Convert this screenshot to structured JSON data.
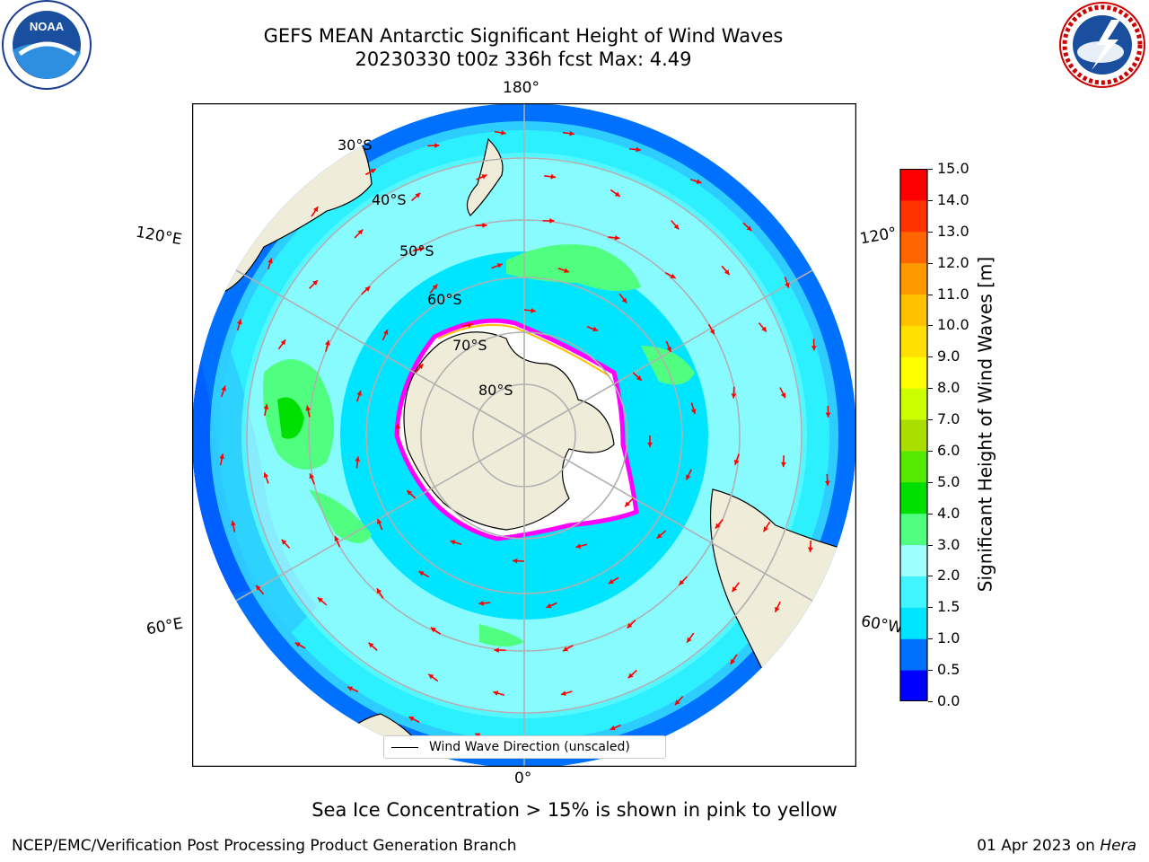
{
  "title_line1": "GEFS MEAN Antarctic Significant Height of Wind Waves",
  "title_line2": "20230330 t00z 336h fcst   Max: 4.49",
  "map": {
    "projection": "south polar stereographic",
    "lon_labels": [
      "180°",
      "120°E",
      "120°",
      "60°E",
      "60°W",
      "0°"
    ],
    "lat_labels": [
      "30°S",
      "40°S",
      "50°S",
      "60°S",
      "70°S",
      "80°S"
    ],
    "legend_label": "Wind Wave Direction (unscaled)",
    "colors": {
      "land": "#efedd9",
      "ice_edge": "#ff00ff",
      "arrow": "#ff0000",
      "grid": "#b0b0b0"
    }
  },
  "colorbar": {
    "title": "Significant Height of Wind Waves [m]",
    "ticks": [
      "0.0",
      "0.5",
      "1.0",
      "1.5",
      "2.0",
      "3.0",
      "4.0",
      "5.0",
      "6.0",
      "7.0",
      "8.0",
      "9.0",
      "10.0",
      "11.0",
      "12.0",
      "13.0",
      "14.0",
      "15.0"
    ],
    "colors": [
      "#0000ff",
      "#0070ff",
      "#00e5ff",
      "#40f5ff",
      "#a0ffff",
      "#50ff80",
      "#00e000",
      "#55e800",
      "#aadd00",
      "#ccff00",
      "#ffff00",
      "#ffe000",
      "#ffc000",
      "#ff9900",
      "#ff6600",
      "#ff3300",
      "#ff0000"
    ]
  },
  "footer_note": "Sea Ice Concentration > 15% is shown in pink to yellow",
  "credit": "NCEP/EMC/Verification Post Processing Product Generation Branch",
  "run_date": "01 Apr 2023 on",
  "host": "Hera"
}
